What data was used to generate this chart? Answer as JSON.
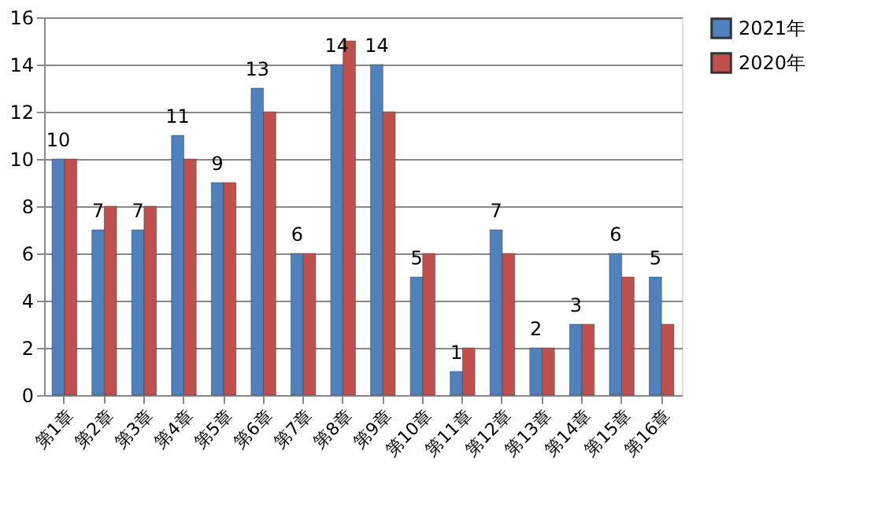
{
  "chart_data": {
    "type": "bar",
    "categories": [
      "第1章",
      "第2章",
      "第3章",
      "第4章",
      "第5章",
      "第6章",
      "第7章",
      "第8章",
      "第9章",
      "第10章",
      "第11章",
      "第12章",
      "第13章",
      "第14章",
      "第15章",
      "第16章"
    ],
    "series": [
      {
        "name": "2021年",
        "color": "#4f81bd",
        "values": [
          10,
          7,
          7,
          11,
          9,
          13,
          6,
          14,
          14,
          5,
          1,
          7,
          2,
          3,
          6,
          5
        ],
        "value_labels": [
          "10",
          "7",
          "7",
          "11",
          "9",
          "13",
          "6",
          "14",
          "14",
          "5",
          "1",
          "7",
          "2",
          "3",
          "6",
          "5"
        ]
      },
      {
        "name": "2020年",
        "color": "#c0504d",
        "values": [
          10,
          8,
          8,
          10,
          9,
          12,
          6,
          15,
          12,
          6,
          2,
          6,
          2,
          3,
          5,
          3
        ]
      }
    ],
    "ylim": [
      0,
      16
    ],
    "yticks": [
      0,
      2,
      4,
      6,
      8,
      10,
      12,
      14,
      16
    ],
    "grid": "y",
    "legend": "right"
  }
}
